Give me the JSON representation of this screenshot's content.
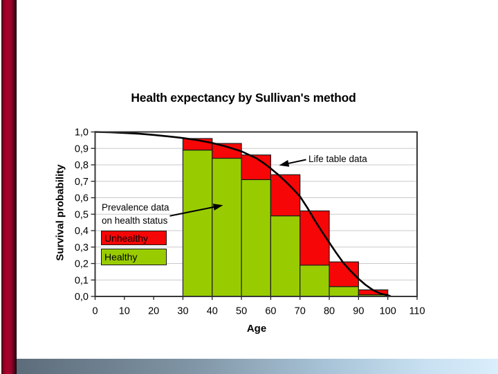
{
  "slide": {
    "title": "Health expectancy by Sullivan's method",
    "decor": {
      "left_bar_color": "#a50029",
      "bottom_bar_left_color": "#5d6c7a",
      "bottom_bar_right_color": "#daeefb"
    }
  },
  "chart": {
    "title": "Health expectancy by Sullivan's method",
    "y_axis_label": "Survival probability",
    "x_axis_label": "Age",
    "y_tick_labels": [
      "1,0",
      "0,9",
      "0,8",
      "0,7",
      "0,6",
      "0,5",
      "0,4",
      "0,3",
      "0,2",
      "0,1",
      "0,0"
    ],
    "x_tick_labels": [
      "0",
      "10",
      "20",
      "30",
      "40",
      "50",
      "60",
      "70",
      "80",
      "90",
      "100",
      "110"
    ],
    "annotations": {
      "life_table_label": "Life table data",
      "prevalence_line1": "Prevalence data",
      "prevalence_line2": "on health status"
    },
    "legend": [
      {
        "label": "Unhealthy",
        "color": "#f60606"
      },
      {
        "label": "Healthy",
        "color": "#99cc00"
      }
    ]
  },
  "chart_data": {
    "type": "bar",
    "stacked": true,
    "title": "Health expectancy by Sullivan's method",
    "xlabel": "Age",
    "ylabel": "Survival probability",
    "xlim": [
      0,
      110
    ],
    "ylim": [
      0.0,
      1.0
    ],
    "grid": "horizontal",
    "legend_position": "inside-left",
    "categories": [
      "30-40",
      "40-50",
      "50-60",
      "60-70",
      "70-80",
      "80-90",
      "90-100"
    ],
    "bar_intervals": [
      [
        30,
        40
      ],
      [
        40,
        50
      ],
      [
        50,
        60
      ],
      [
        60,
        70
      ],
      [
        70,
        80
      ],
      [
        80,
        90
      ],
      [
        90,
        100
      ]
    ],
    "series": [
      {
        "name": "Healthy",
        "color": "#99cc00",
        "values": [
          0.89,
          0.84,
          0.71,
          0.49,
          0.19,
          0.06,
          0.01
        ]
      },
      {
        "name": "Unhealthy",
        "color": "#f60606",
        "values": [
          0.07,
          0.09,
          0.15,
          0.25,
          0.33,
          0.15,
          0.03
        ]
      }
    ],
    "line_series": {
      "name": "Life table data",
      "color": "#000000",
      "points": [
        [
          0,
          1.0
        ],
        [
          5,
          0.998
        ],
        [
          10,
          0.994
        ],
        [
          15,
          0.989
        ],
        [
          20,
          0.982
        ],
        [
          25,
          0.973
        ],
        [
          30,
          0.963
        ],
        [
          35,
          0.95
        ],
        [
          40,
          0.933
        ],
        [
          45,
          0.91
        ],
        [
          50,
          0.882
        ],
        [
          55,
          0.841
        ],
        [
          57.5,
          0.812
        ],
        [
          60,
          0.778
        ],
        [
          62.5,
          0.741
        ],
        [
          65,
          0.7
        ],
        [
          67.5,
          0.656
        ],
        [
          70,
          0.608
        ],
        [
          72.5,
          0.54
        ],
        [
          75,
          0.464
        ],
        [
          77.5,
          0.394
        ],
        [
          80,
          0.328
        ],
        [
          82.5,
          0.262
        ],
        [
          85,
          0.2
        ],
        [
          87.5,
          0.151
        ],
        [
          90,
          0.107
        ],
        [
          92.5,
          0.069
        ],
        [
          95,
          0.038
        ],
        [
          97.5,
          0.017
        ],
        [
          100,
          0.007
        ],
        [
          100.8,
          0.002
        ]
      ]
    }
  }
}
